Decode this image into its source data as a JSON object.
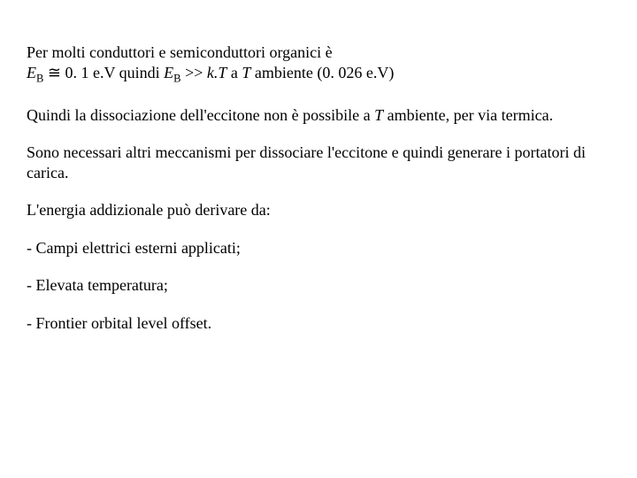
{
  "doc": {
    "font_family": "Times New Roman",
    "font_size_pt": 18,
    "text_color": "#000000",
    "background_color": "#ffffff",
    "p1a_prefix": "Per molti conduttori e semiconduttori organici è",
    "p1b_eb": "E",
    "p1b_sub": "B",
    "p1b_approx": " ≅ 0. 1 e.V  quindi ",
    "p1b_eb2": "E",
    "p1b_sub2": "B",
    "p1b_gtgt": " >> ",
    "p1b_kT_k": "k.T",
    "p1b_a": " a ",
    "p1b_T": "T",
    "p1b_amb": " ambiente (0. 026 e.V)",
    "p2_before_T": "Quindi la dissociazione dell'eccitone non è possibile a ",
    "p2_T": "T",
    "p2_after_T": " ambiente, per via termica.",
    "p3": "Sono necessari altri meccanismi per dissociare l'eccitone e quindi generare i portatori di carica.",
    "p4": "L'energia addizionale può derivare da:",
    "li1": "- Campi elettrici esterni applicati;",
    "li2": "- Elevata temperatura;",
    "li3": "- Frontier orbital level offset."
  }
}
